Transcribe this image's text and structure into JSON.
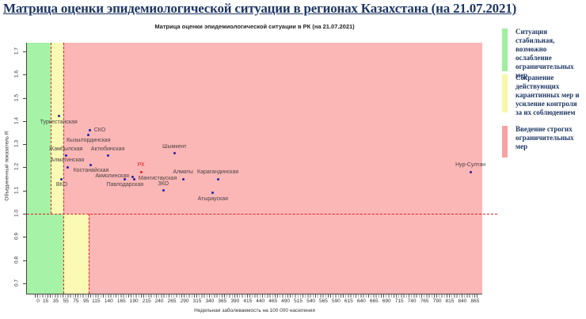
{
  "header": {
    "title": "Матрица оценки эпидемиологической ситуации в регионах Казахстана (на 21.07.2021)"
  },
  "chart_data": {
    "type": "scatter",
    "title": "Матрица оценки эпидемиологической ситуации в РК (на 21.07.2021)",
    "xlabel": "Недельная заболеваемость на 100 000 населения",
    "ylabel": "Объединенный показатель R",
    "x_ticks": [
      0,
      15,
      35,
      55,
      75,
      95,
      115,
      140,
      165,
      190,
      215,
      240,
      265,
      290,
      315,
      340,
      365,
      390,
      415,
      440,
      465,
      490,
      515,
      540,
      565,
      590,
      615,
      640,
      665,
      690,
      715,
      740,
      765,
      790,
      815,
      840,
      865
    ],
    "y_ticks": [
      "1.7",
      "1.6",
      "1.5",
      "1.4",
      "1.3",
      "1.2",
      "1.1",
      "1.0",
      "0.9",
      "0.8",
      "0.7"
    ],
    "xlim": [
      -22,
      880
    ],
    "ylim": [
      0.66,
      1.73
    ],
    "grid": false,
    "reference_line_r": 1.0,
    "zones": {
      "above_r1_thresholds": [
        25,
        50
      ],
      "below_r1_thresholds": [
        50,
        100
      ],
      "description": "green = stable, yellow = keep restrictions, red = strict restrictions"
    },
    "points": [
      {
        "name": "Туркестанская",
        "x": 41,
        "r": 1.42,
        "label_pos": "below",
        "highlight": false
      },
      {
        "name": "СКО",
        "x": 103,
        "r": 1.36,
        "label_pos": "right",
        "highlight": false
      },
      {
        "name": "Кызылординская",
        "x": 100,
        "r": 1.34,
        "label_pos": "below",
        "highlight": false
      },
      {
        "name": "Жамбылская",
        "x": 55,
        "r": 1.25,
        "label_pos": "above",
        "highlight": false
      },
      {
        "name": "Актюбинская",
        "x": 138,
        "r": 1.25,
        "label_pos": "above",
        "highlight": false
      },
      {
        "name": "Алматинская",
        "x": 58,
        "r": 1.2,
        "label_pos": "above",
        "highlight": false
      },
      {
        "name": "Костанайская",
        "x": 105,
        "r": 1.21,
        "label_pos": "below",
        "highlight": false
      },
      {
        "name": "ВКО",
        "x": 47,
        "r": 1.15,
        "label_pos": "below",
        "highlight": false
      },
      {
        "name": "РК",
        "x": 204,
        "r": 1.18,
        "label_pos": "above",
        "highlight": true
      },
      {
        "name": "Акмолинская",
        "x": 188,
        "r": 1.16,
        "label_pos": "left",
        "highlight": false
      },
      {
        "name": "Павлодарская",
        "x": 172,
        "r": 1.15,
        "label_pos": "below",
        "highlight": false
      },
      {
        "name": "Мангистауская",
        "x": 191,
        "r": 1.15,
        "label_pos": "right",
        "highlight": false
      },
      {
        "name": "ЗКО",
        "x": 248,
        "r": 1.1,
        "label_pos": "above",
        "highlight": false
      },
      {
        "name": "Шымкент",
        "x": 270,
        "r": 1.26,
        "label_pos": "above",
        "highlight": false
      },
      {
        "name": "Алматы",
        "x": 287,
        "r": 1.15,
        "label_pos": "above",
        "highlight": false
      },
      {
        "name": "Карагандинская",
        "x": 356,
        "r": 1.15,
        "label_pos": "above",
        "highlight": false
      },
      {
        "name": "Атырауская",
        "x": 346,
        "r": 1.09,
        "label_pos": "below",
        "highlight": false
      },
      {
        "name": "Нур-Султан",
        "x": 856,
        "r": 1.18,
        "label_pos": "above",
        "highlight": false
      }
    ]
  },
  "legend": {
    "items": [
      {
        "color": "#9ef09e",
        "text": "Ситуация стабильная, возможно ослабление ограничительных мер"
      },
      {
        "color": "#f7f7a6",
        "text": "Сохранение действующих карантинных мер и усиление контроля за их соблюдением"
      },
      {
        "color": "#f7a2a2",
        "text": "Введение строгих ограничительных мер"
      }
    ]
  },
  "colors": {
    "green_zone": "#a6f2a6",
    "yellow_zone": "#fafab4",
    "red_zone": "#fbb6b6",
    "dashed_line": "#e02020",
    "point": "#2424a8",
    "highlight": "#e02020",
    "title": "#1f3864"
  }
}
